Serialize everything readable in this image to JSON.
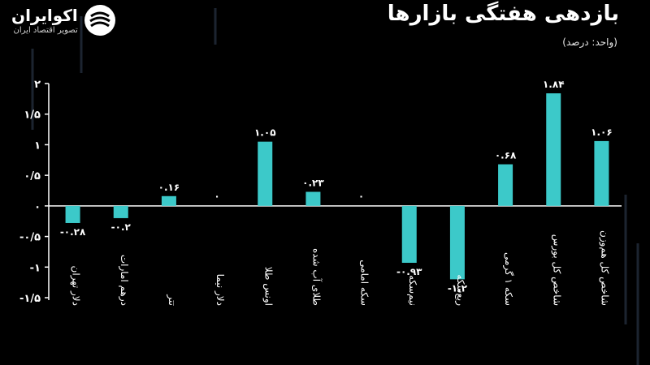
{
  "header": {
    "title": "بازدهی هفتگی بازارها",
    "unit": "(واحد: درصد)"
  },
  "logo": {
    "brand": "اکوایران",
    "tagline": "تصویر اقتصاد ایران"
  },
  "colors": {
    "bar": "#3cc9c9",
    "axis": "#ffffff",
    "text": "#ffffff"
  },
  "chart_data": {
    "type": "bar",
    "categories": [
      "دلار تهران",
      "درهم امارات",
      "تتر",
      "دلار نیما",
      "اونس طلا",
      "طلای آب شده",
      "سکه امامی",
      "نیم‌سکه",
      "ربع‌سکه",
      "سکه ۱ گرمی",
      "شاخص کل بورس",
      "شاخص کل هم‌وزن"
    ],
    "values": [
      -0.28,
      -0.2,
      0.16,
      0,
      1.05,
      0.23,
      0,
      -0.93,
      -1.2,
      0.68,
      1.84,
      1.06
    ],
    "data_labels": [
      "-۰.۲۸",
      "-۰.۲",
      "۰.۱۶",
      "۰",
      "۱.۰۵",
      "۰.۲۳",
      "۰",
      "-۰.۹۳",
      "-۱.۲",
      "۰.۶۸",
      "۱.۸۴",
      "۱.۰۶"
    ],
    "ylim": [
      -1.5,
      2
    ],
    "yticks": [
      2,
      1.5,
      1,
      0.5,
      0,
      -0.5,
      -1,
      -1.5
    ],
    "ytick_labels": [
      "۲",
      "۱/۵",
      "۱",
      "۰/۵",
      "۰",
      "-۰/۵",
      "-۱",
      "-۱/۵"
    ],
    "grid": false,
    "legend": "none"
  }
}
